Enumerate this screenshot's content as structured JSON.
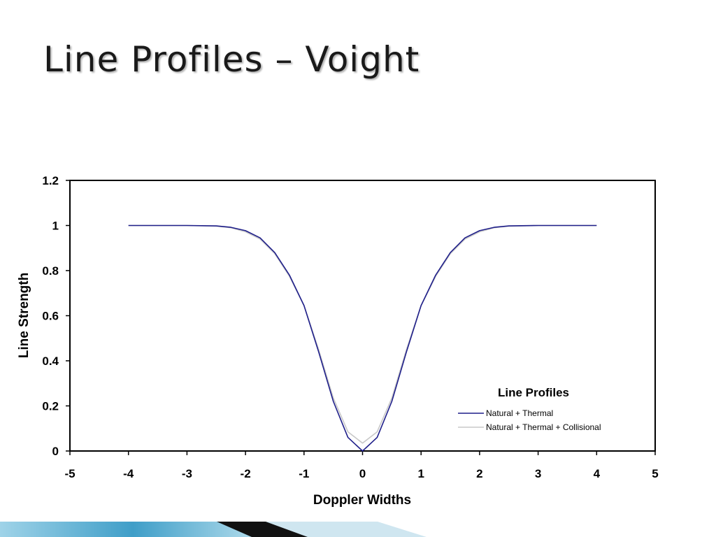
{
  "slide": {
    "title": "Line Profiles – Voight"
  },
  "chart_data": {
    "type": "line",
    "title": "",
    "xlabel": "Doppler Widths",
    "ylabel": "Line Strength",
    "xlim": [
      -5,
      5
    ],
    "ylim": [
      0,
      1.2
    ],
    "x_ticks": [
      -5,
      -4,
      -3,
      -2,
      -1,
      0,
      1,
      2,
      3,
      4,
      5
    ],
    "y_ticks": [
      0,
      0.2,
      0.4,
      0.6,
      0.8,
      1,
      1.2
    ],
    "x_tick_labels": [
      "-5",
      "-4",
      "-3",
      "-2",
      "-1",
      "0",
      "1",
      "2",
      "3",
      "4",
      "5"
    ],
    "y_tick_labels": [
      "0",
      "0.2",
      "0.4",
      "0.6",
      "0.8",
      "1",
      "1.2"
    ],
    "grid": false,
    "legend": {
      "title": "Line Profiles",
      "placement": "bottom-right"
    },
    "x": [
      -4,
      -3.5,
      -3,
      -2.5,
      -2.25,
      -2,
      -1.75,
      -1.5,
      -1.25,
      -1,
      -0.75,
      -0.5,
      -0.25,
      0,
      0.25,
      0.5,
      0.75,
      1,
      1.25,
      1.5,
      1.75,
      2,
      2.25,
      2.5,
      3,
      3.5,
      4
    ],
    "series": [
      {
        "name": "Natural + Thermal",
        "color": "#1f1f8a",
        "values": [
          1.0,
          1.0,
          1.0,
          0.998,
          0.992,
          0.977,
          0.945,
          0.88,
          0.78,
          0.645,
          0.44,
          0.22,
          0.06,
          0.0,
          0.06,
          0.22,
          0.44,
          0.645,
          0.78,
          0.88,
          0.945,
          0.977,
          0.992,
          0.998,
          1.0,
          1.0,
          1.0
        ]
      },
      {
        "name": "Natural + Thermal + Collisional",
        "color": "#c8c8c8",
        "values": [
          1.0,
          1.0,
          1.0,
          0.997,
          0.99,
          0.972,
          0.94,
          0.875,
          0.775,
          0.645,
          0.45,
          0.235,
          0.085,
          0.035,
          0.085,
          0.235,
          0.45,
          0.645,
          0.775,
          0.875,
          0.94,
          0.972,
          0.99,
          0.997,
          1.0,
          1.0,
          1.0
        ]
      }
    ]
  },
  "colors": {
    "axis": "#000000",
    "bar_light": "#cfe6f0",
    "bar_teal": "#4aa8cf",
    "bar_dark": "#111111"
  }
}
